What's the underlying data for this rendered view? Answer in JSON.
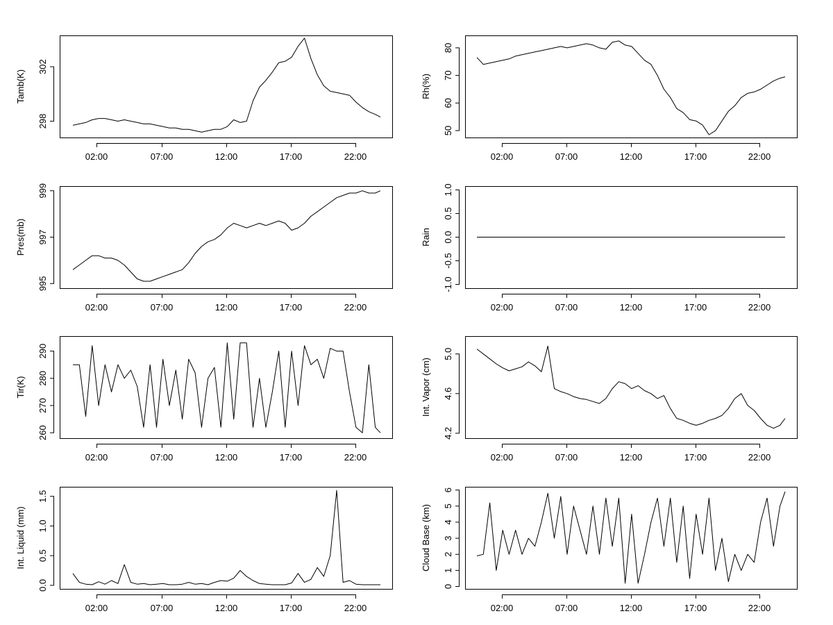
{
  "chart_data": [
    {
      "type": "line",
      "ylabel": "Tamb(K)",
      "x_ticks": [
        "02:00",
        "07:00",
        "12:00",
        "17:00",
        "22:00"
      ],
      "y_ticks": [
        "298",
        "302"
      ],
      "ylim": [
        296.8,
        304.3
      ],
      "series": [
        {
          "x": [
            0.0,
            0.5,
            1.0,
            1.5,
            2.0,
            2.5,
            3.0,
            3.5,
            4.0,
            4.5,
            5.0,
            5.5,
            6.0,
            6.5,
            7.0,
            7.5,
            8.0,
            8.5,
            9.0,
            9.5,
            10.0,
            10.5,
            11.0,
            11.5,
            12.0,
            12.5,
            13.0,
            13.5,
            14.0,
            14.5,
            15.0,
            15.5,
            16.0,
            16.5,
            17.0,
            17.5,
            18.0,
            18.5,
            19.0,
            19.5,
            20.0,
            20.5,
            21.0,
            21.5,
            22.0,
            22.5,
            23.0,
            23.5,
            23.9
          ],
          "y": [
            297.7,
            297.8,
            297.9,
            298.1,
            298.2,
            298.2,
            298.1,
            298.0,
            298.1,
            298.0,
            297.9,
            297.8,
            297.8,
            297.7,
            297.6,
            297.5,
            297.5,
            297.4,
            297.4,
            297.3,
            297.2,
            297.3,
            297.4,
            297.4,
            297.6,
            298.1,
            297.9,
            298.0,
            299.5,
            300.5,
            301.0,
            301.6,
            302.3,
            302.4,
            302.7,
            303.5,
            304.1,
            302.6,
            301.4,
            300.6,
            300.2,
            300.1,
            300.0,
            299.9,
            299.4,
            299.0,
            298.7,
            298.5,
            298.3
          ]
        }
      ]
    },
    {
      "type": "line",
      "ylabel": "Rh(%)",
      "x_ticks": [
        "02:00",
        "07:00",
        "12:00",
        "17:00",
        "22:00"
      ],
      "y_ticks": [
        "50",
        "60",
        "70",
        "80"
      ],
      "ylim": [
        47.5,
        84.5
      ],
      "series": [
        {
          "x": [
            0.0,
            0.5,
            1.0,
            1.5,
            2.0,
            2.5,
            3.0,
            3.5,
            4.0,
            4.5,
            5.0,
            5.5,
            6.0,
            6.5,
            7.0,
            7.5,
            8.0,
            8.5,
            9.0,
            9.5,
            10.0,
            10.5,
            11.0,
            11.5,
            12.0,
            12.5,
            13.0,
            13.5,
            14.0,
            14.5,
            15.0,
            15.5,
            16.0,
            16.5,
            17.0,
            17.5,
            18.0,
            18.5,
            19.0,
            19.5,
            20.0,
            20.5,
            21.0,
            21.5,
            22.0,
            22.5,
            23.0,
            23.5,
            23.9
          ],
          "y": [
            76.5,
            74.0,
            74.5,
            75.0,
            75.5,
            76.0,
            77.0,
            77.5,
            78.0,
            78.5,
            79.0,
            79.5,
            80.0,
            80.5,
            80.0,
            80.5,
            81.0,
            81.5,
            81.0,
            80.0,
            79.5,
            82.0,
            82.5,
            81.0,
            80.5,
            78.0,
            75.5,
            74.0,
            70.0,
            65.0,
            62.0,
            58.0,
            56.5,
            54.0,
            53.5,
            52.0,
            48.5,
            50.0,
            53.5,
            57.0,
            59.0,
            62.0,
            63.5,
            64.0,
            65.0,
            66.5,
            68.0,
            69.0,
            69.5
          ]
        }
      ]
    },
    {
      "type": "line",
      "ylabel": "Pres(mb)",
      "x_ticks": [
        "02:00",
        "07:00",
        "12:00",
        "17:00",
        "22:00"
      ],
      "y_ticks": [
        "995",
        "997",
        "999"
      ],
      "ylim": [
        994.8,
        999.2
      ],
      "series": [
        {
          "x": [
            0.0,
            0.5,
            1.0,
            1.5,
            2.0,
            2.5,
            3.0,
            3.5,
            4.0,
            4.5,
            5.0,
            5.5,
            6.0,
            6.5,
            7.0,
            7.5,
            8.0,
            8.5,
            9.0,
            9.5,
            10.0,
            10.5,
            11.0,
            11.5,
            12.0,
            12.5,
            13.0,
            13.5,
            14.0,
            14.5,
            15.0,
            15.5,
            16.0,
            16.5,
            17.0,
            17.5,
            18.0,
            18.5,
            19.0,
            19.5,
            20.0,
            20.5,
            21.0,
            21.5,
            22.0,
            22.5,
            23.0,
            23.5,
            23.9
          ],
          "y": [
            995.6,
            995.8,
            996.0,
            996.2,
            996.2,
            996.1,
            996.1,
            996.0,
            995.8,
            995.5,
            995.2,
            995.1,
            995.1,
            995.2,
            995.3,
            995.4,
            995.5,
            995.6,
            995.9,
            996.3,
            996.6,
            996.8,
            996.9,
            997.1,
            997.4,
            997.6,
            997.5,
            997.4,
            997.5,
            997.6,
            997.5,
            997.6,
            997.7,
            997.6,
            997.3,
            997.4,
            997.6,
            997.9,
            998.1,
            998.3,
            998.5,
            998.7,
            998.8,
            998.9,
            998.9,
            999.0,
            998.9,
            998.9,
            999.0
          ]
        }
      ]
    },
    {
      "type": "line",
      "ylabel": "Rain",
      "x_ticks": [
        "02:00",
        "07:00",
        "12:00",
        "17:00",
        "22:00"
      ],
      "y_ticks": [
        "-1.0",
        "-0.5",
        "0.0",
        "0.5",
        "1.0"
      ],
      "ylim": [
        -1.08,
        1.08
      ],
      "series": [
        {
          "x": [
            0.0,
            23.9
          ],
          "y": [
            0.0,
            0.0
          ]
        }
      ]
    },
    {
      "type": "line",
      "ylabel": "Tir(K)",
      "x_ticks": [
        "02:00",
        "07:00",
        "12:00",
        "17:00",
        "22:00"
      ],
      "y_ticks": [
        "260",
        "270",
        "280",
        "290"
      ],
      "ylim": [
        258.0,
        295.5
      ],
      "series": [
        {
          "x": [
            0.0,
            0.5,
            1.0,
            1.5,
            2.0,
            2.5,
            3.0,
            3.5,
            4.0,
            4.5,
            5.0,
            5.5,
            6.0,
            6.5,
            7.0,
            7.5,
            8.0,
            8.5,
            9.0,
            9.5,
            10.0,
            10.5,
            11.0,
            11.5,
            12.0,
            12.5,
            13.0,
            13.5,
            14.0,
            14.5,
            15.0,
            15.5,
            16.0,
            16.5,
            17.0,
            17.5,
            18.0,
            18.5,
            19.0,
            19.5,
            20.0,
            20.5,
            21.0,
            21.5,
            22.0,
            22.5,
            23.0,
            23.5,
            23.9
          ],
          "y": [
            285,
            285,
            266,
            292,
            270,
            285,
            275,
            285,
            280,
            283,
            277,
            262,
            285,
            262,
            287,
            270,
            283,
            265,
            287,
            282,
            262,
            280,
            284,
            262,
            293,
            265,
            293,
            293,
            262,
            280,
            262,
            275,
            290,
            262,
            290,
            270,
            292,
            285,
            287,
            280,
            291,
            290,
            290,
            275,
            262,
            260,
            285,
            262,
            260
          ]
        }
      ]
    },
    {
      "type": "line",
      "ylabel": "Int. Vapor (cm)",
      "x_ticks": [
        "02:00",
        "07:00",
        "12:00",
        "17:00",
        "22:00"
      ],
      "y_ticks": [
        "4.2",
        "4.6",
        "5.0"
      ],
      "ylim": [
        4.15,
        5.18
      ],
      "series": [
        {
          "x": [
            0.0,
            0.5,
            1.0,
            1.5,
            2.0,
            2.5,
            3.0,
            3.5,
            4.0,
            4.5,
            5.0,
            5.5,
            6.0,
            6.5,
            7.0,
            7.5,
            8.0,
            8.5,
            9.0,
            9.5,
            10.0,
            10.5,
            11.0,
            11.5,
            12.0,
            12.5,
            13.0,
            13.5,
            14.0,
            14.5,
            15.0,
            15.5,
            16.0,
            16.5,
            17.0,
            17.5,
            18.0,
            18.5,
            19.0,
            19.5,
            20.0,
            20.5,
            21.0,
            21.5,
            22.0,
            22.5,
            23.0,
            23.5,
            23.9
          ],
          "y": [
            5.05,
            5.0,
            4.95,
            4.9,
            4.86,
            4.83,
            4.85,
            4.87,
            4.92,
            4.88,
            4.82,
            5.08,
            4.65,
            4.62,
            4.6,
            4.57,
            4.55,
            4.54,
            4.52,
            4.5,
            4.55,
            4.65,
            4.72,
            4.7,
            4.65,
            4.68,
            4.63,
            4.6,
            4.55,
            4.58,
            4.45,
            4.35,
            4.33,
            4.3,
            4.28,
            4.3,
            4.33,
            4.35,
            4.38,
            4.45,
            4.55,
            4.6,
            4.48,
            4.43,
            4.35,
            4.28,
            4.25,
            4.28,
            4.35
          ]
        }
      ]
    },
    {
      "type": "line",
      "ylabel": "Int. Liquid (mm)",
      "x_ticks": [
        "02:00",
        "07:00",
        "12:00",
        "17:00",
        "22:00"
      ],
      "y_ticks": [
        "0.0",
        "0.5",
        "1.0",
        "1.5"
      ],
      "ylim": [
        -0.06,
        1.66
      ],
      "series": [
        {
          "x": [
            0.0,
            0.5,
            1.0,
            1.5,
            2.0,
            2.5,
            3.0,
            3.5,
            4.0,
            4.5,
            5.0,
            5.5,
            6.0,
            6.5,
            7.0,
            7.5,
            8.0,
            8.5,
            9.0,
            9.5,
            10.0,
            10.5,
            11.0,
            11.5,
            12.0,
            12.5,
            13.0,
            13.5,
            14.0,
            14.5,
            15.0,
            15.5,
            16.0,
            16.5,
            17.0,
            17.5,
            18.0,
            18.5,
            19.0,
            19.5,
            20.0,
            20.5,
            21.0,
            21.5,
            22.0,
            22.5,
            23.0,
            23.5,
            23.9
          ],
          "y": [
            0.2,
            0.05,
            0.02,
            0.01,
            0.06,
            0.02,
            0.08,
            0.03,
            0.35,
            0.05,
            0.02,
            0.03,
            0.01,
            0.02,
            0.03,
            0.01,
            0.01,
            0.02,
            0.05,
            0.02,
            0.03,
            0.01,
            0.05,
            0.08,
            0.07,
            0.12,
            0.25,
            0.15,
            0.08,
            0.03,
            0.02,
            0.01,
            0.01,
            0.01,
            0.04,
            0.2,
            0.05,
            0.1,
            0.3,
            0.15,
            0.5,
            1.6,
            0.05,
            0.08,
            0.02,
            0.01,
            0.01,
            0.01,
            0.01
          ]
        }
      ]
    },
    {
      "type": "line",
      "ylabel": "Cloud Base (km)",
      "x_ticks": [
        "02:00",
        "07:00",
        "12:00",
        "17:00",
        "22:00"
      ],
      "y_ticks": [
        "0",
        "1",
        "2",
        "3",
        "4",
        "5",
        "6"
      ],
      "ylim": [
        -0.15,
        6.2
      ],
      "series": [
        {
          "x": [
            0.0,
            0.5,
            1.0,
            1.5,
            2.0,
            2.5,
            3.0,
            3.5,
            4.0,
            4.5,
            5.0,
            5.5,
            6.0,
            6.5,
            7.0,
            7.5,
            8.0,
            8.5,
            9.0,
            9.5,
            10.0,
            10.5,
            11.0,
            11.5,
            12.0,
            12.5,
            13.0,
            13.5,
            14.0,
            14.5,
            15.0,
            15.5,
            16.0,
            16.5,
            17.0,
            17.5,
            18.0,
            18.5,
            19.0,
            19.5,
            20.0,
            20.5,
            21.0,
            21.5,
            22.0,
            22.5,
            23.0,
            23.5,
            23.9
          ],
          "y": [
            1.9,
            2.0,
            5.2,
            1.0,
            3.5,
            2.0,
            3.5,
            2.0,
            3.0,
            2.5,
            4.0,
            5.8,
            3.0,
            5.6,
            2.0,
            5.0,
            3.5,
            2.0,
            5.0,
            2.0,
            5.5,
            2.5,
            5.5,
            0.2,
            4.5,
            0.2,
            2.0,
            4.0,
            5.5,
            2.5,
            5.5,
            1.5,
            5.0,
            0.5,
            4.5,
            2.0,
            5.5,
            1.0,
            3.0,
            0.3,
            2.0,
            1.0,
            2.0,
            1.5,
            4.0,
            5.5,
            2.5,
            5.0,
            5.9
          ]
        }
      ]
    }
  ]
}
